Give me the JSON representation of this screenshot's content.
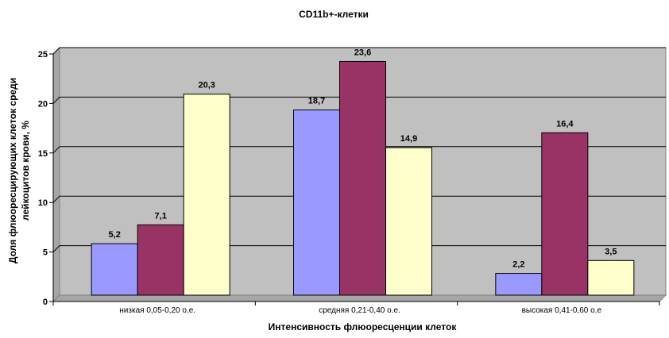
{
  "chart_data": {
    "type": "bar",
    "title": "CD11b+-клетки",
    "xlabel": "Интенсивность флюоресценции клеток",
    "ylabel_lines": [
      "Доля флюоресцирующих клеток среди",
      "лейкоцитов крови, %"
    ],
    "categories": [
      "низкая 0,05-0,20 о.е.",
      "средняя 0,21-0,40 о.е.",
      "высокая 0,41-0,60 о.е"
    ],
    "series": [
      {
        "values": [
          5.2,
          18.7,
          2.2
        ],
        "labels": [
          "5,2",
          "18,7",
          "2,2"
        ],
        "color": "#9999ff"
      },
      {
        "values": [
          7.1,
          23.6,
          16.4
        ],
        "labels": [
          "7,1",
          "23,6",
          "16,4"
        ],
        "color": "#993366"
      },
      {
        "values": [
          20.3,
          14.9,
          3.5
        ],
        "labels": [
          "20,3",
          "14,9",
          "3,5"
        ],
        "color": "#ffffcc"
      }
    ],
    "ylim": [
      0,
      25
    ],
    "yticks": [
      0,
      5,
      10,
      15,
      20,
      25
    ],
    "grid": true,
    "plot_background": "#c0c0c0",
    "legend": "none"
  }
}
